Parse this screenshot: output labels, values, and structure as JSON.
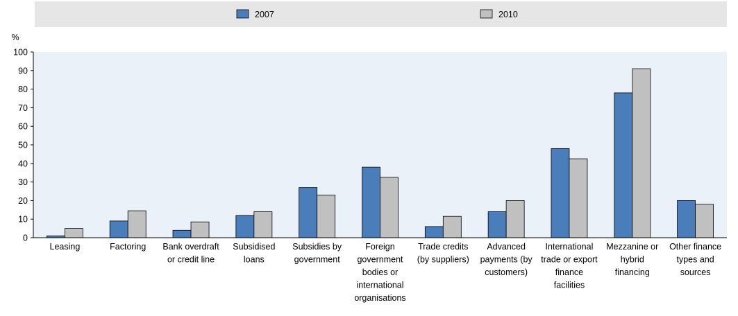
{
  "chart_data": {
    "type": "bar",
    "ylabel": "%",
    "ylim": [
      0,
      100
    ],
    "yticks": [
      0,
      10,
      20,
      30,
      40,
      50,
      60,
      70,
      80,
      90,
      100
    ],
    "grid": false,
    "legend_placement": "top-center",
    "categories": [
      [
        "Leasing"
      ],
      [
        "Factoring"
      ],
      [
        "Bank overdraft",
        "or credit line"
      ],
      [
        "Subsidised",
        "loans"
      ],
      [
        "Subsidies by",
        "government"
      ],
      [
        "Foreign",
        "government",
        "bodies or",
        "international",
        "organisations"
      ],
      [
        "Trade credits",
        "(by suppliers)"
      ],
      [
        "Advanced",
        "payments (by",
        "customers)"
      ],
      [
        "International",
        "trade or export",
        "finance",
        "facilities"
      ],
      [
        "Mezzanine or",
        "hybrid",
        "financing"
      ],
      [
        "Other finance",
        "types and",
        "sources"
      ]
    ],
    "series": [
      {
        "name": "2007",
        "color": "#4a7ebb",
        "values": [
          1,
          9,
          4,
          12,
          27,
          38,
          6,
          14,
          48,
          78,
          20
        ]
      },
      {
        "name": "2010",
        "color": "#c0c0c0",
        "values": [
          5,
          14.5,
          8.5,
          14,
          23,
          32.5,
          11.5,
          20,
          42.5,
          91,
          18
        ]
      }
    ]
  }
}
